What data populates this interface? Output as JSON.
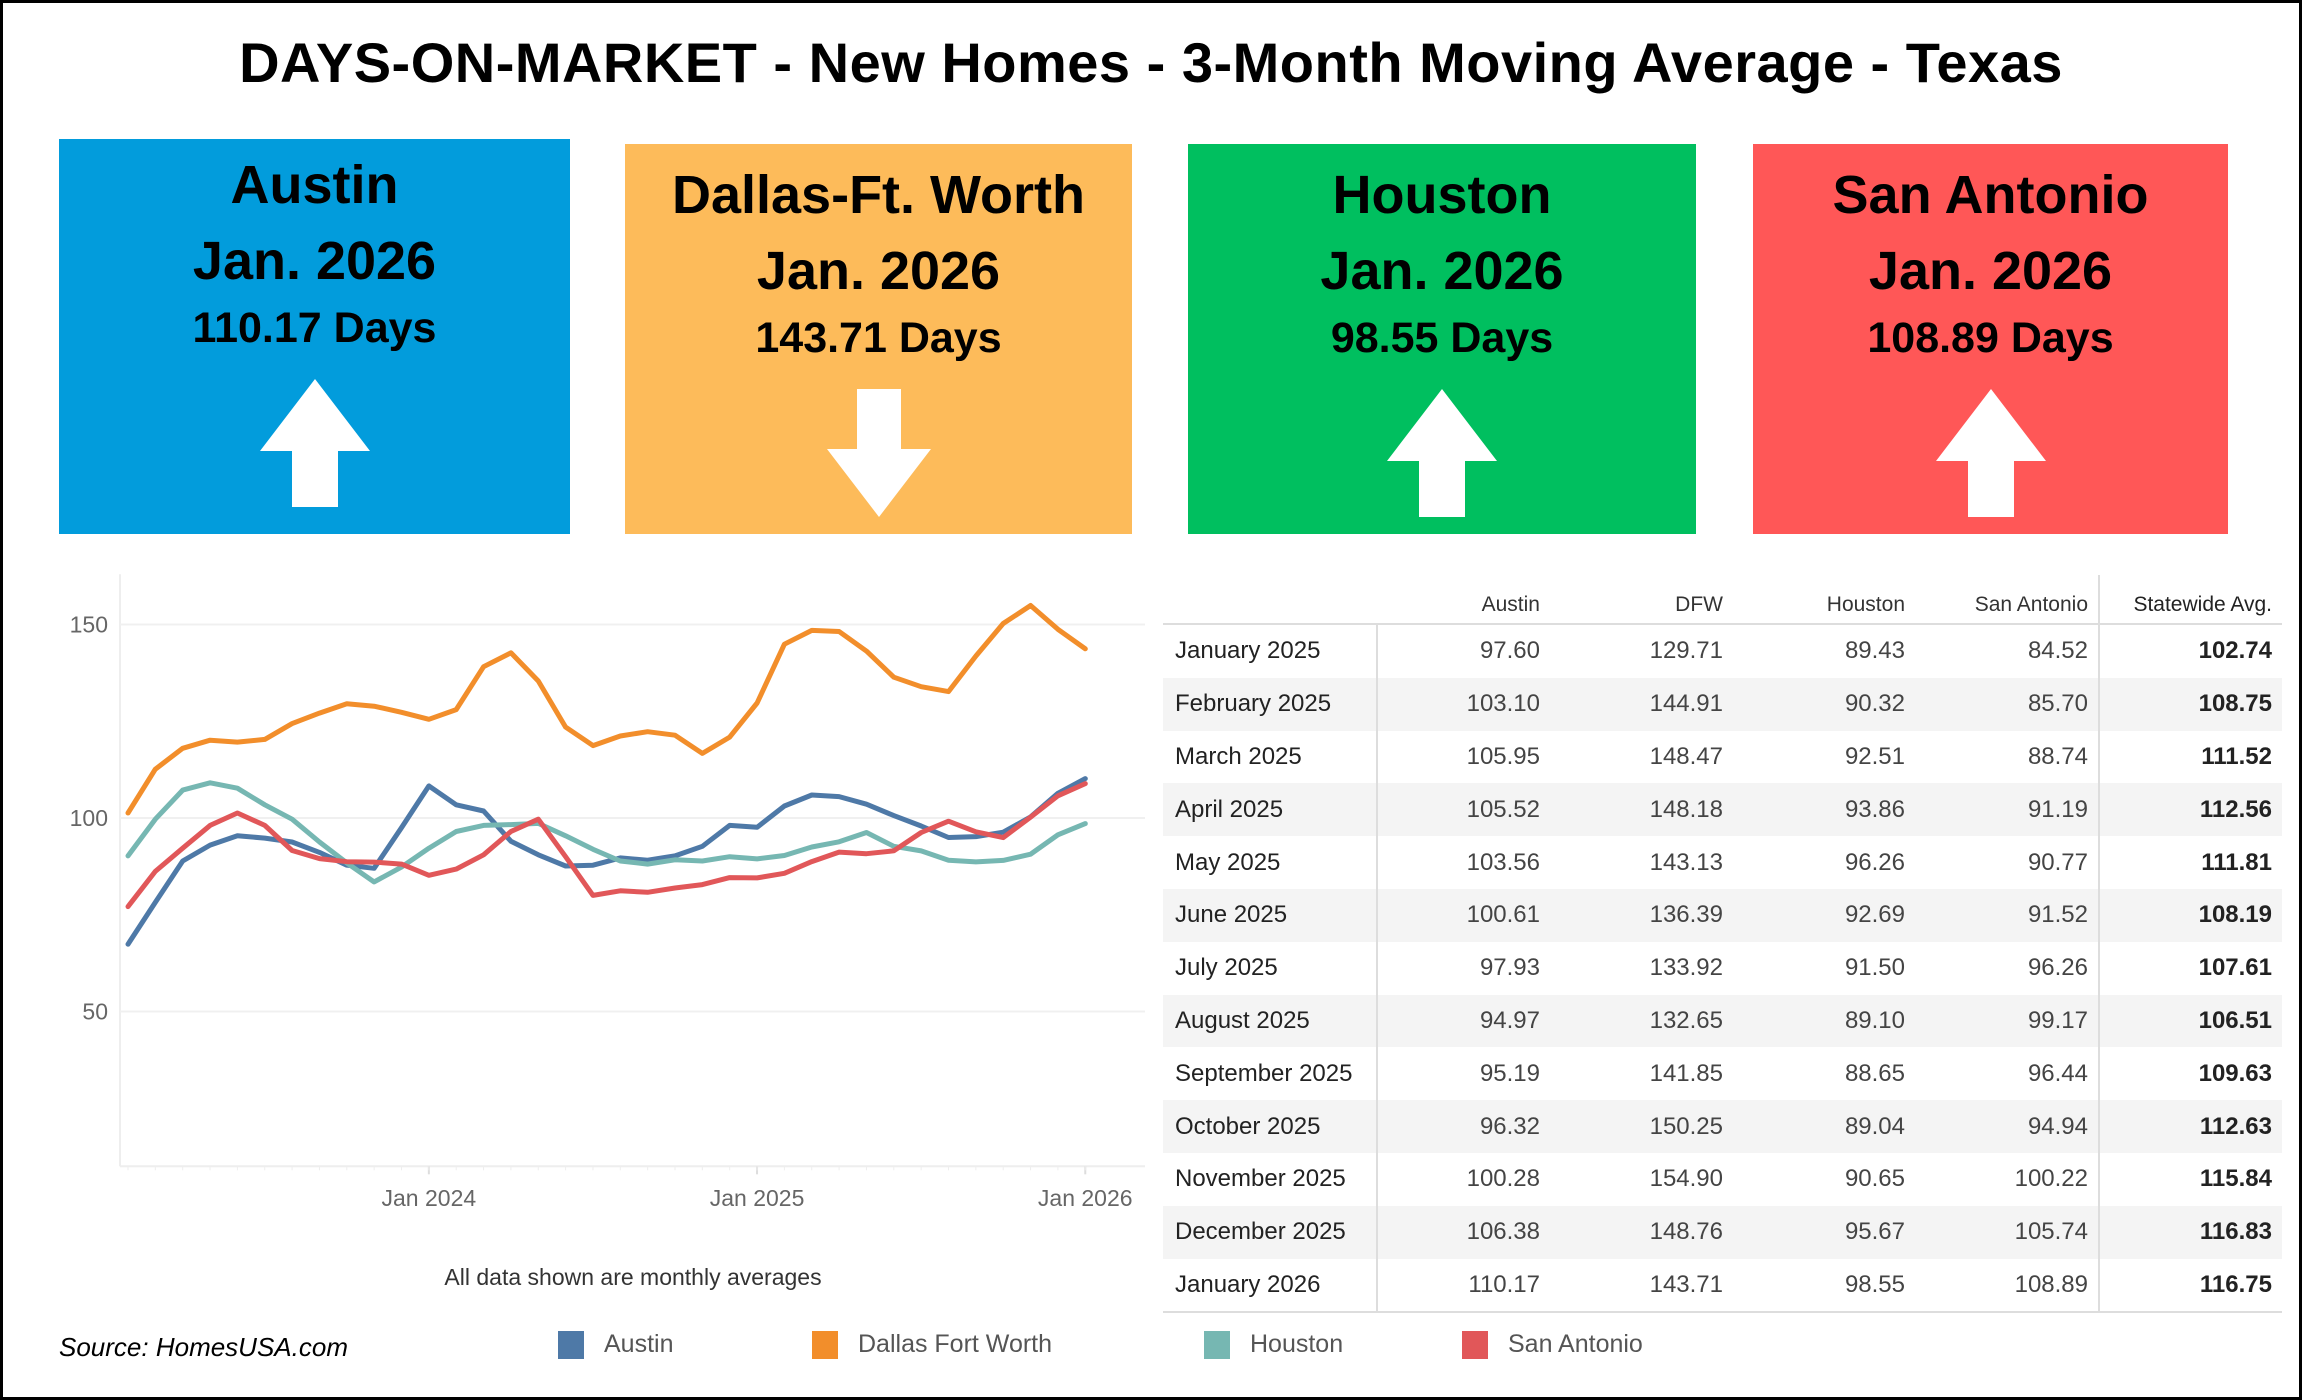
{
  "title": "DAYS-ON-MARKET - New Homes - 3-Month Moving Average - Texas",
  "cards": [
    {
      "city": "Austin",
      "date": "Jan. 2026",
      "days": "110.17 Days",
      "trend": "up",
      "color": "#029cdc"
    },
    {
      "city": "Dallas-Ft. Worth",
      "date": "Jan. 2026",
      "days": "143.71 Days",
      "trend": "down",
      "color": "#fdbb5a"
    },
    {
      "city": "Houston",
      "date": "Jan. 2026",
      "days": "98.55 Days",
      "trend": "up",
      "color": "#00bf5f"
    },
    {
      "city": "San Antonio",
      "date": "Jan. 2026",
      "days": "108.89 Days",
      "trend": "up",
      "color": "#ff5757"
    }
  ],
  "chart_data": {
    "type": "line",
    "x_start": "2023-02",
    "x_end": "2026-01",
    "x_ticks": [
      "Jan 2024",
      "Jan 2025",
      "Jan 2026"
    ],
    "y_ticks": [
      50,
      100,
      150
    ],
    "ylim": [
      10,
      163
    ],
    "grid": true,
    "legend_placement": "bottom",
    "caption": "All data shown are monthly averages",
    "series": [
      {
        "name": "Austin",
        "color": "#4e79a7",
        "values": [
          67.4,
          78.2,
          88.9,
          93.0,
          95.4,
          94.8,
          93.8,
          91.1,
          87.8,
          87.0,
          97.5,
          108.3,
          103.4,
          101.8,
          94.0,
          90.5,
          87.6,
          87.8,
          89.7,
          89.1,
          90.2,
          92.7,
          98.1,
          97.6,
          103.1,
          105.95,
          105.52,
          103.56,
          100.61,
          97.93,
          94.97,
          95.19,
          96.32,
          100.28,
          106.38,
          110.17
        ]
      },
      {
        "name": "Dallas Fort Worth",
        "color": "#f28e2b",
        "values": [
          101.3,
          112.6,
          118.0,
          120.1,
          119.6,
          120.3,
          124.4,
          127.1,
          129.5,
          128.9,
          127.3,
          125.5,
          128.0,
          139.1,
          142.7,
          135.4,
          123.5,
          118.7,
          121.2,
          122.3,
          121.4,
          116.7,
          120.9,
          129.71,
          144.91,
          148.47,
          148.18,
          143.13,
          136.39,
          133.92,
          132.65,
          141.85,
          150.25,
          154.9,
          148.76,
          143.71
        ]
      },
      {
        "name": "Houston",
        "color": "#76b7b2",
        "values": [
          90.2,
          99.7,
          107.2,
          109.1,
          107.7,
          103.4,
          99.7,
          93.8,
          88.4,
          83.5,
          87.3,
          92.2,
          96.5,
          98.1,
          98.3,
          98.6,
          95.4,
          91.9,
          88.9,
          88.1,
          89.2,
          88.9,
          90.0,
          89.43,
          90.32,
          92.51,
          93.86,
          96.26,
          92.69,
          91.5,
          89.1,
          88.65,
          89.04,
          90.65,
          95.67,
          98.55
        ]
      },
      {
        "name": "San Antonio",
        "color": "#e15759",
        "values": [
          77.1,
          86.2,
          92.2,
          98.1,
          101.3,
          98.1,
          91.6,
          89.5,
          88.7,
          88.6,
          88.1,
          85.2,
          86.8,
          90.5,
          96.5,
          99.7,
          90.0,
          80.0,
          81.2,
          80.8,
          81.9,
          82.8,
          84.6,
          84.52,
          85.7,
          88.74,
          91.19,
          90.77,
          91.52,
          96.26,
          99.17,
          96.44,
          94.94,
          100.22,
          105.74,
          108.89
        ]
      }
    ]
  },
  "source": "Source: HomesUSA.com",
  "table": {
    "headers": [
      "",
      "Austin",
      "DFW",
      "Houston",
      "San Antonio",
      "Statewide Avg."
    ],
    "rows": [
      [
        "January 2025",
        "97.60",
        "129.71",
        "89.43",
        "84.52",
        "102.74"
      ],
      [
        "February 2025",
        "103.10",
        "144.91",
        "90.32",
        "85.70",
        "108.75"
      ],
      [
        "March 2025",
        "105.95",
        "148.47",
        "92.51",
        "88.74",
        "111.52"
      ],
      [
        "April 2025",
        "105.52",
        "148.18",
        "93.86",
        "91.19",
        "112.56"
      ],
      [
        "May 2025",
        "103.56",
        "143.13",
        "96.26",
        "90.77",
        "111.81"
      ],
      [
        "June 2025",
        "100.61",
        "136.39",
        "92.69",
        "91.52",
        "108.19"
      ],
      [
        "July 2025",
        "97.93",
        "133.92",
        "91.50",
        "96.26",
        "107.61"
      ],
      [
        "August 2025",
        "94.97",
        "132.65",
        "89.10",
        "99.17",
        "106.51"
      ],
      [
        "September 2025",
        "95.19",
        "141.85",
        "88.65",
        "96.44",
        "109.63"
      ],
      [
        "October 2025",
        "96.32",
        "150.25",
        "89.04",
        "94.94",
        "112.63"
      ],
      [
        "November 2025",
        "100.28",
        "154.90",
        "90.65",
        "100.22",
        "115.84"
      ],
      [
        "December 2025",
        "106.38",
        "148.76",
        "95.67",
        "105.74",
        "116.83"
      ],
      [
        "January 2026",
        "110.17",
        "143.71",
        "98.55",
        "108.89",
        "116.75"
      ]
    ]
  }
}
